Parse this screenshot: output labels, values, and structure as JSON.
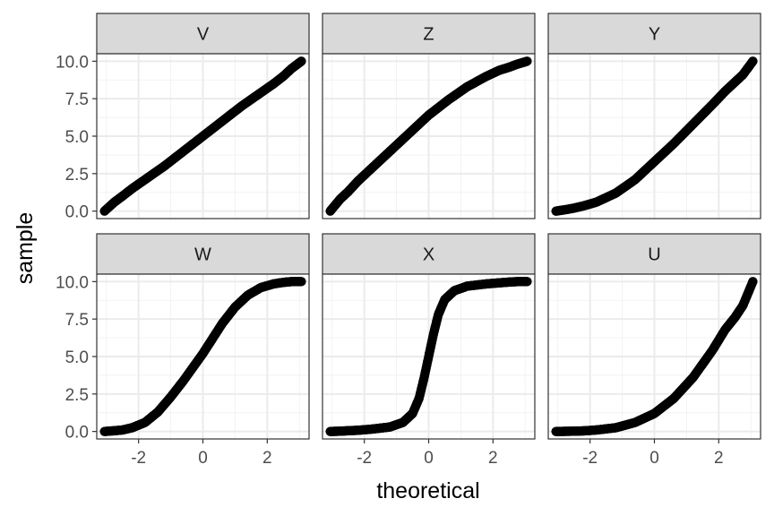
{
  "chart_data": {
    "type": "scatter",
    "layout": "facet-grid-2x3",
    "xlabel": "theoretical",
    "ylabel": "sample",
    "xlim": [
      -3.3,
      3.3
    ],
    "ylim": [
      -0.5,
      10.5
    ],
    "x_ticks": [
      -2,
      0,
      2
    ],
    "x_tick_labels": [
      "-2",
      "0",
      "2"
    ],
    "y_ticks": [
      0,
      2.5,
      5,
      7.5,
      10
    ],
    "y_tick_labels": [
      "0.0",
      "2.5",
      "5.0",
      "7.5",
      "10.0"
    ],
    "grid": true,
    "point_color": "#000000",
    "panel_border_color": "#333333",
    "strip_fill": "#d9d9d9",
    "panels": [
      {
        "name": "V",
        "x": [
          -3.06,
          -2.75,
          -2.5,
          -2.2,
          -1.8,
          -1.2,
          -0.6,
          0,
          0.6,
          1.2,
          1.8,
          2.2,
          2.5,
          2.75,
          3.06
        ],
        "y": [
          0.0,
          0.6,
          1.0,
          1.5,
          2.1,
          3.0,
          4.0,
          5.0,
          6.0,
          7.0,
          7.9,
          8.5,
          9.0,
          9.5,
          10.0
        ]
      },
      {
        "name": "Z",
        "x": [
          -3.06,
          -2.75,
          -2.5,
          -2.2,
          -1.8,
          -1.2,
          -0.6,
          0,
          0.6,
          1.2,
          1.8,
          2.2,
          2.5,
          2.75,
          3.06
        ],
        "y": [
          0.0,
          0.8,
          1.3,
          2.0,
          2.8,
          4.0,
          5.2,
          6.4,
          7.4,
          8.3,
          9.0,
          9.4,
          9.6,
          9.8,
          10.0
        ]
      },
      {
        "name": "Y",
        "x": [
          -3.06,
          -2.75,
          -2.5,
          -2.2,
          -1.8,
          -1.2,
          -0.6,
          0,
          0.6,
          1.2,
          1.8,
          2.2,
          2.5,
          2.75,
          3.06
        ],
        "y": [
          0.0,
          0.1,
          0.2,
          0.35,
          0.6,
          1.2,
          2.1,
          3.3,
          4.5,
          5.8,
          7.1,
          8.0,
          8.6,
          9.1,
          10.0
        ]
      },
      {
        "name": "W",
        "x": [
          -3.06,
          -2.75,
          -2.5,
          -2.2,
          -1.8,
          -1.4,
          -1.0,
          -0.6,
          -0.3,
          0,
          0.3,
          0.6,
          1.0,
          1.4,
          1.8,
          2.2,
          2.5,
          2.75,
          3.06
        ],
        "y": [
          0.0,
          0.05,
          0.1,
          0.25,
          0.6,
          1.3,
          2.3,
          3.4,
          4.3,
          5.2,
          6.2,
          7.2,
          8.3,
          9.1,
          9.6,
          9.85,
          9.95,
          10.0,
          10.0
        ]
      },
      {
        "name": "X",
        "x": [
          -3.06,
          -2.75,
          -2.5,
          -2.2,
          -1.8,
          -1.2,
          -0.8,
          -0.5,
          -0.3,
          -0.15,
          0,
          0.15,
          0.3,
          0.5,
          0.8,
          1.2,
          1.8,
          2.2,
          2.5,
          2.75,
          3.06
        ],
        "y": [
          0.0,
          0.02,
          0.05,
          0.08,
          0.15,
          0.3,
          0.6,
          1.2,
          2.2,
          3.5,
          5.0,
          6.5,
          7.8,
          8.8,
          9.4,
          9.7,
          9.85,
          9.92,
          9.97,
          10.0,
          10.0
        ]
      },
      {
        "name": "U",
        "x": [
          -3.06,
          -2.75,
          -2.5,
          -2.2,
          -1.8,
          -1.2,
          -0.6,
          0,
          0.6,
          1.2,
          1.8,
          2.2,
          2.5,
          2.75,
          3.06
        ],
        "y": [
          0.0,
          0.01,
          0.02,
          0.04,
          0.1,
          0.25,
          0.6,
          1.2,
          2.2,
          3.6,
          5.4,
          6.8,
          7.6,
          8.4,
          10.0
        ]
      }
    ]
  }
}
